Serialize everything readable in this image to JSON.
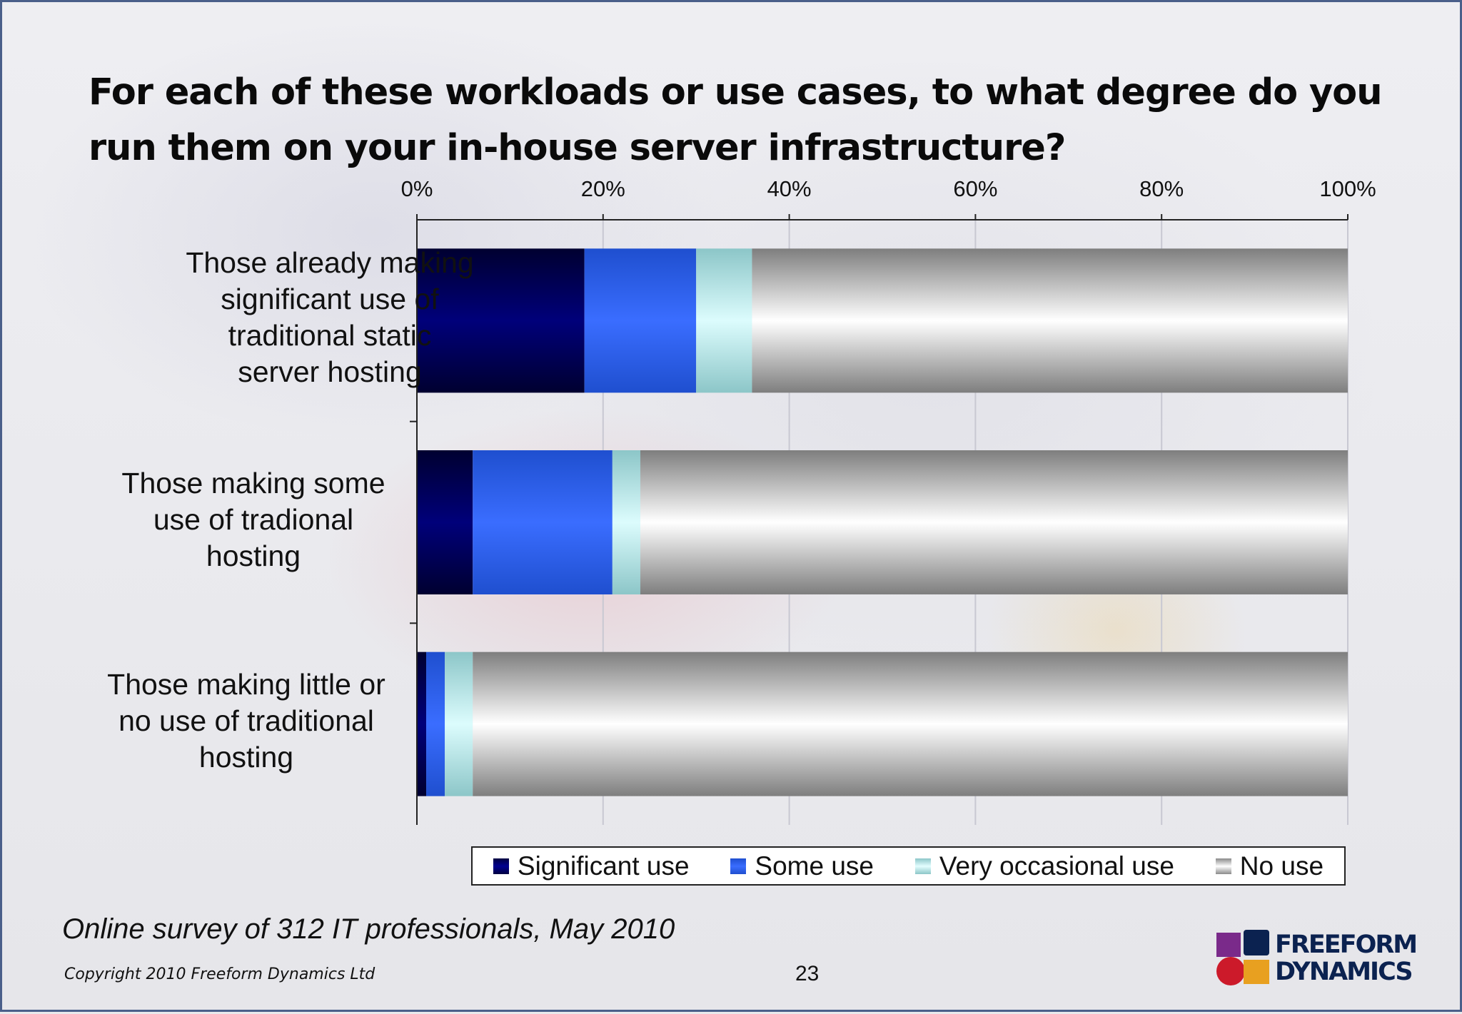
{
  "slide": {
    "title": "For each of these workloads or use cases, to what degree do you run them on your in-house server infrastructure?",
    "source_note": "Online survey of 312 IT professionals, May 2010",
    "copyright": "Copyright 2010 Freeform Dynamics Ltd",
    "page_number": "23",
    "logo": {
      "line1": "FREEFORM",
      "line2": "DYNAMICS"
    }
  },
  "chart_data": {
    "type": "bar",
    "orientation": "horizontal",
    "stacked": "percent",
    "title": "For each of these workloads or use cases, to what degree do you run them on your in-house server infrastructure?",
    "categories": [
      "Those already making significant use of traditional static server hosting",
      "Those making some use of tradional hosting",
      "Those making little or no use of traditional hosting"
    ],
    "category_lines": [
      [
        "Those already making",
        "significant use of",
        "traditional static",
        "server hosting"
      ],
      [
        "Those making some",
        "use of tradional",
        "hosting"
      ],
      [
        "Those making little or",
        "no use of traditional",
        "hosting"
      ]
    ],
    "series": [
      {
        "name": "Significant use",
        "color": "#000066",
        "values": [
          18,
          6,
          1
        ]
      },
      {
        "name": "Some use",
        "color": "#2b63f2",
        "values": [
          12,
          15,
          2
        ]
      },
      {
        "name": "Very occasional use",
        "color": "#b5ebec",
        "values": [
          6,
          3,
          3
        ]
      },
      {
        "name": "No use",
        "color": "#c8c8c8",
        "values": [
          64,
          76,
          94
        ]
      }
    ],
    "xlim": [
      0,
      100
    ],
    "x_ticks": [
      "0%",
      "20%",
      "40%",
      "60%",
      "80%",
      "100%"
    ],
    "grid": true,
    "legend_position": "bottom"
  }
}
